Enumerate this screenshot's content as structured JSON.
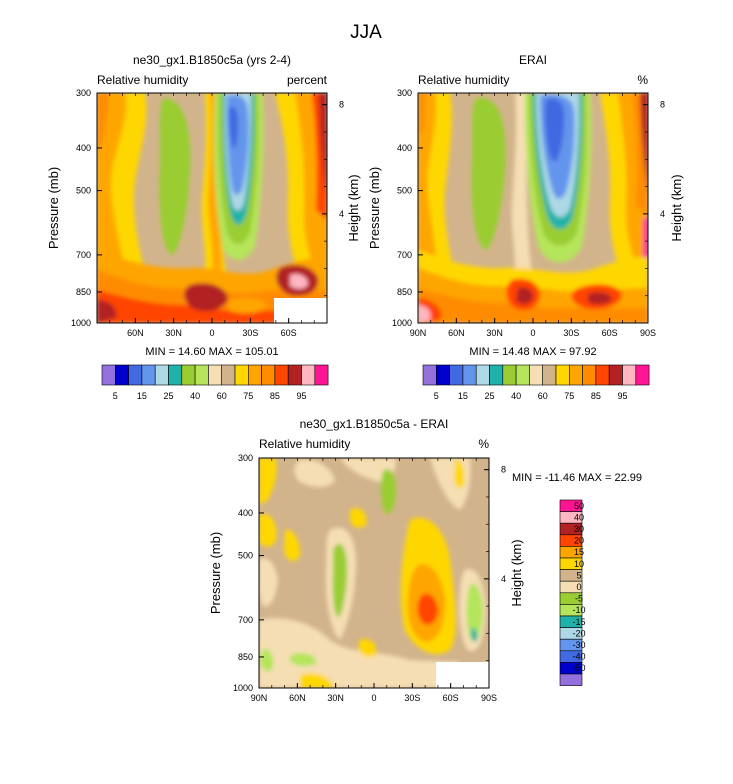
{
  "figure": {
    "title": "JJA"
  },
  "colors": {
    "rh_levels": [
      "#9370db",
      "#0000cd",
      "#4169e1",
      "#6495ed",
      "#add8e6",
      "#20b2aa",
      "#9acd32",
      "#b5e55a",
      "#f5deb3",
      "#d2b48c",
      "#ffd700",
      "#ffa500",
      "#ff8c00",
      "#ff4500",
      "#b22222",
      "#ffb6c1",
      "#ff1493"
    ],
    "diff_levels": [
      "#9370db",
      "#0000cd",
      "#4169e1",
      "#6495ed",
      "#add8e6",
      "#20b2aa",
      "#b5e55a",
      "#9acd32",
      "#f5deb3",
      "#d2b48c",
      "#ffd700",
      "#ffa500",
      "#ff4500",
      "#b22222",
      "#ffb6c1",
      "#ff1493"
    ]
  },
  "chart_data": [
    {
      "id": "model",
      "type": "heatmap",
      "title": "ne30_gx1.B1850c5a (yrs 2-4)",
      "left_label": "Relative humidity",
      "units_label": "percent",
      "ylabel": "Pressure (mb)",
      "ylabel_right": "Height (km)",
      "xticks": [
        "60N",
        "30N",
        "0",
        "30S",
        "60S"
      ],
      "yticks": [
        "300",
        "400",
        "500",
        "700",
        "850",
        "1000"
      ],
      "right_ticks": [
        "8",
        "4"
      ],
      "ylim": [
        1000,
        300
      ],
      "stats": "MIN =  14.60   MAX = 105.01",
      "min": 14.6,
      "max": 105.01,
      "colorbar_labels": [
        "5",
        "15",
        "25",
        "40",
        "60",
        "75",
        "85",
        "95"
      ]
    },
    {
      "id": "erai",
      "type": "heatmap",
      "title": "ERAI",
      "left_label": "Relative humidity",
      "units_label": "%",
      "ylabel": "Pressure (mb)",
      "ylabel_right": "Height (km)",
      "xticks": [
        "90N",
        "60N",
        "30N",
        "0",
        "30S",
        "60S",
        "90S"
      ],
      "yticks": [
        "300",
        "400",
        "500",
        "700",
        "850",
        "1000"
      ],
      "right_ticks": [
        "8",
        "4"
      ],
      "ylim": [
        1000,
        300
      ],
      "stats": "MIN =  14.48   MAX =  97.92",
      "min": 14.48,
      "max": 97.92,
      "colorbar_labels": [
        "5",
        "15",
        "25",
        "40",
        "60",
        "75",
        "85",
        "95"
      ]
    },
    {
      "id": "diff",
      "type": "heatmap",
      "title": "ne30_gx1.B1850c5a - ERAI",
      "left_label": "Relative humidity",
      "units_label": "%",
      "ylabel": "Pressure (mb)",
      "ylabel_right": "Height (km)",
      "xticks": [
        "90N",
        "60N",
        "30N",
        "0",
        "30S",
        "60S",
        "90S"
      ],
      "yticks": [
        "300",
        "400",
        "500",
        "700",
        "850",
        "1000"
      ],
      "right_ticks": [
        "8",
        "4"
      ],
      "ylim": [
        1000,
        300
      ],
      "stats": "MIN = -11.46   MAX =  22.99",
      "min": -11.46,
      "max": 22.99,
      "colorbar_labels": [
        "50",
        "40",
        "30",
        "20",
        "15",
        "10",
        "5",
        "0",
        "-5",
        "-10",
        "-15",
        "-20",
        "-30",
        "-40",
        "-50"
      ]
    }
  ]
}
